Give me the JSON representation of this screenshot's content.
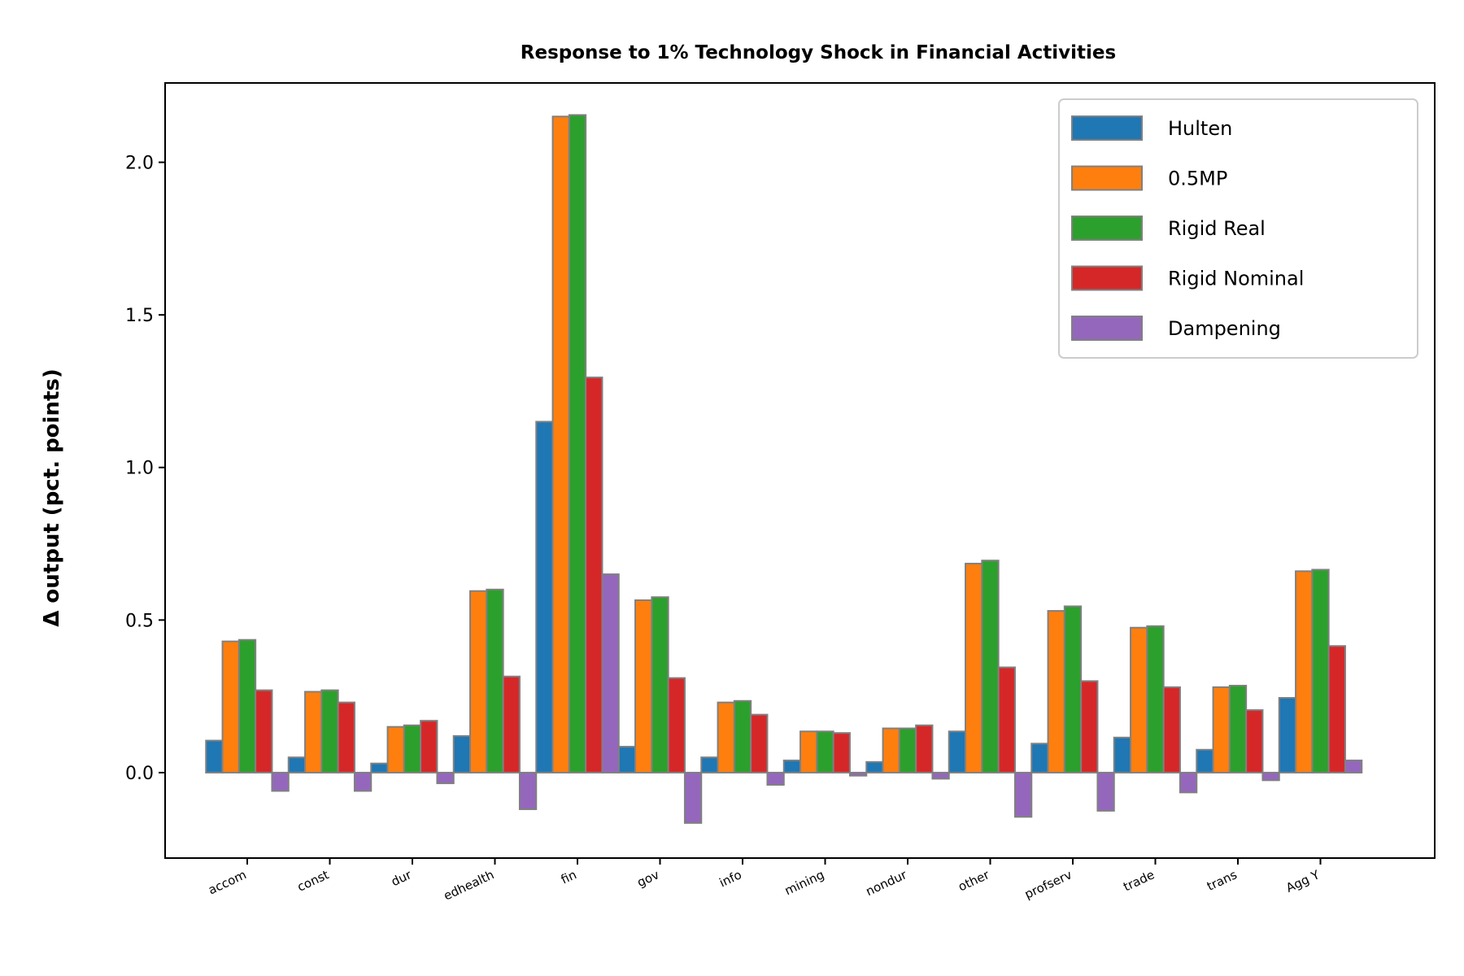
{
  "chart_data": {
    "type": "bar",
    "title": "Response to 1% Technology Shock in Financial Activities",
    "xlabel": "",
    "ylabel": "Δ output (pct. points)",
    "ylim": [
      -0.28,
      2.26
    ],
    "yticks": [
      "0.0",
      "0.5",
      "1.0",
      "1.5",
      "2.0"
    ],
    "categories": [
      "accom",
      "const",
      "dur",
      "edhealth",
      "fin",
      "gov",
      "info",
      "mining",
      "nondur",
      "other",
      "profserv",
      "trade",
      "trans",
      "Agg Y"
    ],
    "series": [
      {
        "name": "Hulten",
        "color": "#1f77b4",
        "values": [
          0.105,
          0.05,
          0.03,
          0.12,
          1.15,
          0.085,
          0.05,
          0.04,
          0.035,
          0.135,
          0.095,
          0.115,
          0.075,
          0.245
        ]
      },
      {
        "name": "0.5MP",
        "color": "#ff7f0e",
        "values": [
          0.43,
          0.265,
          0.15,
          0.595,
          2.15,
          0.565,
          0.23,
          0.135,
          0.145,
          0.685,
          0.53,
          0.475,
          0.28,
          0.66
        ]
      },
      {
        "name": "Rigid Real",
        "color": "#2ca02c",
        "values": [
          0.435,
          0.27,
          0.155,
          0.6,
          2.155,
          0.575,
          0.235,
          0.135,
          0.145,
          0.695,
          0.545,
          0.48,
          0.285,
          0.665
        ]
      },
      {
        "name": "Rigid Nominal",
        "color": "#d62728",
        "values": [
          0.27,
          0.23,
          0.17,
          0.315,
          1.295,
          0.31,
          0.19,
          0.13,
          0.155,
          0.345,
          0.3,
          0.28,
          0.205,
          0.415
        ]
      },
      {
        "name": "Dampening",
        "color": "#9467bd",
        "values": [
          -0.06,
          -0.06,
          -0.035,
          -0.12,
          0.65,
          -0.165,
          -0.04,
          -0.01,
          -0.02,
          -0.145,
          -0.125,
          -0.065,
          -0.025,
          0.04
        ]
      }
    ],
    "legend": "top-right",
    "grid": false
  }
}
